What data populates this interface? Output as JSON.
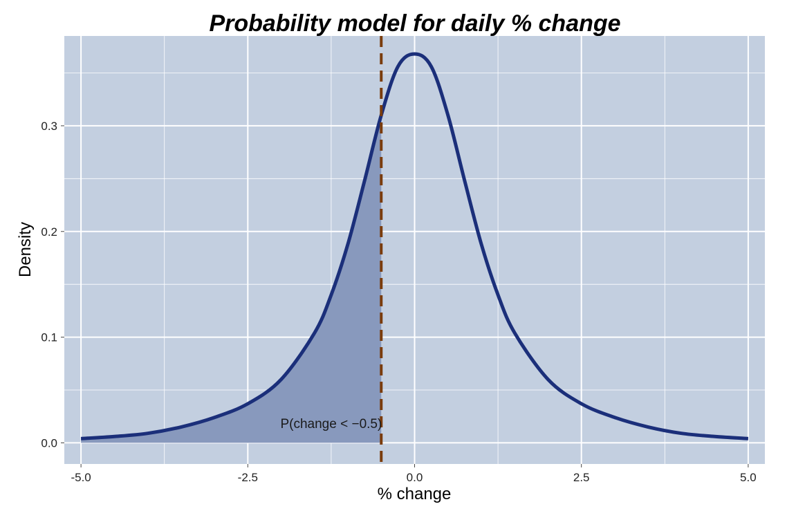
{
  "chart_data": {
    "type": "line",
    "title": "Probability model for daily % change",
    "xlabel": "% change",
    "ylabel": "Density",
    "xlim": [
      -5.25,
      5.25
    ],
    "ylim": [
      -0.02,
      0.385
    ],
    "x_ticks": [
      -5.0,
      -2.5,
      0.0,
      2.5,
      5.0
    ],
    "x_tick_labels": [
      "-5.0",
      "-2.5",
      "0.0",
      "2.5",
      "5.0"
    ],
    "y_ticks": [
      0.0,
      0.1,
      0.2,
      0.3
    ],
    "y_tick_labels": [
      "0.0",
      "0.1",
      "0.2",
      "0.3"
    ],
    "grid": true,
    "series": [
      {
        "x": [
          -5.0,
          -4.5,
          -4.0,
          -3.5,
          -3.0,
          -2.5,
          -2.0,
          -1.5,
          -1.25,
          -1.0,
          -0.75,
          -0.5,
          -0.25,
          0.0,
          0.25,
          0.5,
          0.75,
          1.0,
          1.25,
          1.5,
          2.0,
          2.5,
          3.0,
          3.5,
          4.0,
          4.5,
          5.0
        ],
        "y": [
          0.004,
          0.006,
          0.009,
          0.015,
          0.024,
          0.037,
          0.06,
          0.104,
          0.14,
          0.188,
          0.248,
          0.31,
          0.356,
          0.368,
          0.356,
          0.31,
          0.248,
          0.188,
          0.14,
          0.104,
          0.06,
          0.037,
          0.024,
          0.015,
          0.009,
          0.006,
          0.004
        ]
      }
    ],
    "shaded_region": {
      "x_max": -0.5
    },
    "vline": {
      "x": -0.5
    },
    "annotation": {
      "text": "P(change < −0.5)",
      "x": -1.25,
      "y": 0.014
    },
    "colors": {
      "panel_background": "#c3cfe0",
      "grid_major": "#ffffff",
      "curve": "#1b2f7a",
      "shade": "#8899bd",
      "vline": "#7a3c0c"
    }
  }
}
